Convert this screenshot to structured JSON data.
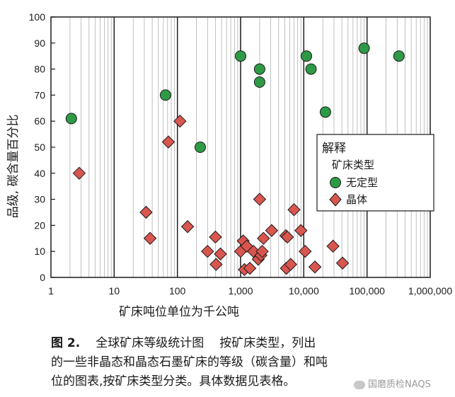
{
  "chart_data": {
    "type": "scatter",
    "xscale": "log",
    "xlim": [
      1,
      1000000
    ],
    "ylim": [
      0,
      100
    ],
    "xlabel": "矿床吨位单位为千公吨",
    "ylabel": "品级, 碳含量百分比",
    "x_tick_labels": [
      "1",
      "10",
      "100",
      "1,000",
      "10,000",
      "100,000",
      "1,000,000"
    ],
    "y_tick_labels": [
      "0",
      "10",
      "20",
      "30",
      "40",
      "50",
      "60",
      "70",
      "80",
      "90",
      "100"
    ],
    "legend": {
      "title": "解释",
      "subtitle": "矿床类型",
      "position": "right"
    },
    "series": [
      {
        "name": "无定型",
        "color": "#2e9a46",
        "marker": "circle",
        "points": [
          {
            "x": 2.1,
            "y": 61
          },
          {
            "x": 65,
            "y": 70
          },
          {
            "x": 230,
            "y": 50
          },
          {
            "x": 1000,
            "y": 85
          },
          {
            "x": 2000,
            "y": 80
          },
          {
            "x": 2000,
            "y": 75
          },
          {
            "x": 11000,
            "y": 85
          },
          {
            "x": 13000,
            "y": 80
          },
          {
            "x": 22000,
            "y": 63.5
          },
          {
            "x": 90000,
            "y": 88
          },
          {
            "x": 320000,
            "y": 85
          }
        ]
      },
      {
        "name": "晶体",
        "color": "#d9564f",
        "marker": "diamond",
        "points": [
          {
            "x": 2.8,
            "y": 40
          },
          {
            "x": 32,
            "y": 25
          },
          {
            "x": 37,
            "y": 15
          },
          {
            "x": 72,
            "y": 52
          },
          {
            "x": 110,
            "y": 60
          },
          {
            "x": 145,
            "y": 19.5
          },
          {
            "x": 300,
            "y": 10
          },
          {
            "x": 400,
            "y": 15.5
          },
          {
            "x": 410,
            "y": 5
          },
          {
            "x": 480,
            "y": 9
          },
          {
            "x": 1000,
            "y": 10
          },
          {
            "x": 1100,
            "y": 14
          },
          {
            "x": 1150,
            "y": 3
          },
          {
            "x": 1250,
            "y": 12
          },
          {
            "x": 1400,
            "y": 3.5
          },
          {
            "x": 1600,
            "y": 10
          },
          {
            "x": 1900,
            "y": 7
          },
          {
            "x": 2000,
            "y": 30
          },
          {
            "x": 2100,
            "y": 8.5
          },
          {
            "x": 2200,
            "y": 10
          },
          {
            "x": 2300,
            "y": 15
          },
          {
            "x": 3100,
            "y": 18
          },
          {
            "x": 5200,
            "y": 16
          },
          {
            "x": 5300,
            "y": 3.5
          },
          {
            "x": 5500,
            "y": 15.5
          },
          {
            "x": 6200,
            "y": 5
          },
          {
            "x": 7000,
            "y": 26
          },
          {
            "x": 9000,
            "y": 18
          },
          {
            "x": 10500,
            "y": 10
          },
          {
            "x": 15000,
            "y": 4
          },
          {
            "x": 29000,
            "y": 12
          },
          {
            "x": 41000,
            "y": 5.5
          }
        ]
      }
    ]
  },
  "caption": {
    "figure_label": "图 2.",
    "title": "全球矿床等级统计图",
    "line1_tail": "按矿床类型，列出",
    "line2": "的一些非晶态和晶态石墨矿床的等级（碳含量）和吨",
    "line3": "位的图表,按矿床类型分类。具体数据见表格。"
  },
  "watermark": {
    "text": "国磨质检NAQS"
  }
}
